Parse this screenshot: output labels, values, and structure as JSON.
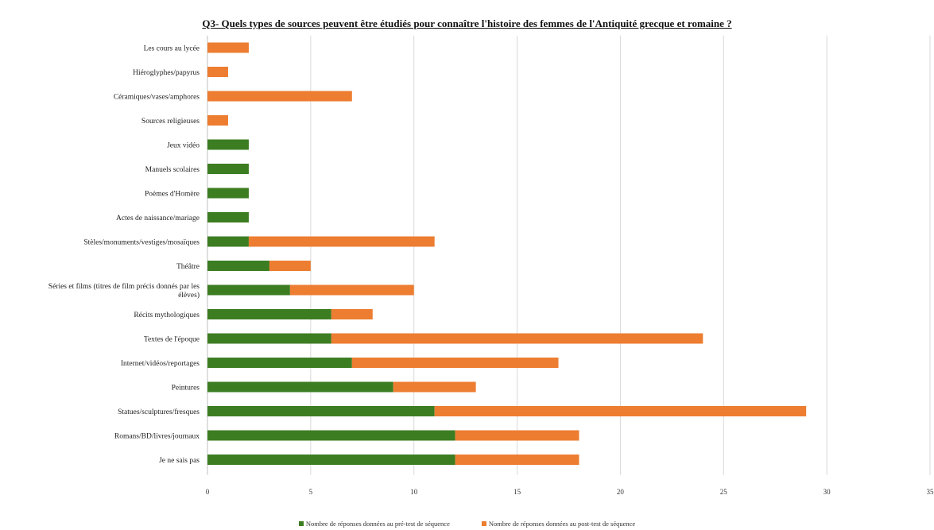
{
  "chart_data": {
    "type": "bar",
    "orientation": "horizontal",
    "stacked": true,
    "title": "Q3- Quels types de sources peuvent être étudiés pour connaître l'histoire des femmes de l'Antiquité grecque et romaine ?",
    "categories": [
      "Les cours au lycée",
      "Hiéroglyphes/papyrus",
      "Céramiques/vases/amphores",
      "Sources religieuses",
      "Jeux vidéo",
      "Manuels scolaires",
      "Poèmes d'Homère",
      "Actes de naissance/mariage",
      "Stèles/monuments/vestiges/mosaïques",
      "Théâtre",
      "Séries et films (titres de film précis donnés par les élèves)",
      "Récits mythologiques",
      "Textes de l'époque",
      "Internet/vidéos/reportages",
      "Peintures",
      "Statues/sculptures/fresques",
      "Romans/BD/livres/journaux",
      "Je ne sais pas"
    ],
    "series": [
      {
        "name": "Nombre de réponses données au pré-test de séquence",
        "color": "#3c7d22",
        "values": [
          0,
          0,
          0,
          0,
          2,
          2,
          2,
          2,
          2,
          3,
          4,
          6,
          6,
          7,
          9,
          11,
          12,
          12
        ]
      },
      {
        "name": "Nombre de réponses données au post-test de séquence",
        "color": "#ed7d31",
        "values": [
          2,
          1,
          7,
          1,
          0,
          0,
          0,
          0,
          9,
          2,
          6,
          2,
          18,
          10,
          4,
          18,
          6,
          6
        ]
      }
    ],
    "xlim": [
      0,
      35
    ],
    "xticks": [
      "0",
      "5",
      "10",
      "15",
      "20",
      "25",
      "30",
      "35"
    ],
    "xlabel": "",
    "ylabel": "",
    "grid": "vertical",
    "legend_position": "bottom"
  }
}
